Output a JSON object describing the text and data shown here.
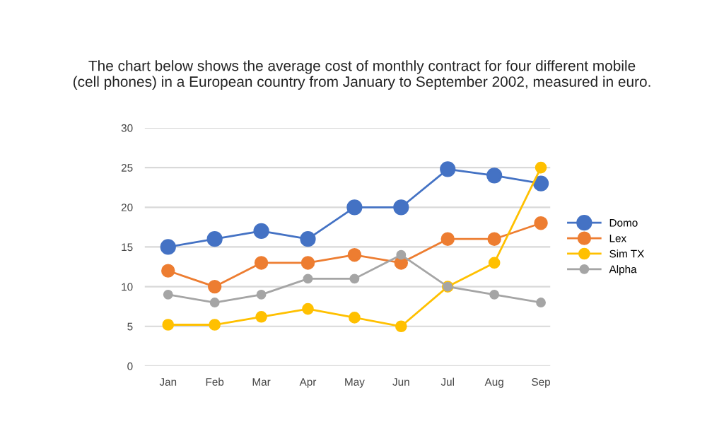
{
  "chart_data": {
    "type": "line",
    "title": "The chart below shows the average cost of monthly contract for four different mobile\n(cell phones) in a European country from January to September 2002, measured in euro.",
    "categories": [
      "Jan",
      "Feb",
      "Mar",
      "Apr",
      "May",
      "Jun",
      "Jul",
      "Aug",
      "Sep"
    ],
    "series": [
      {
        "name": "Domo",
        "color": "#4472c4",
        "values": [
          15,
          16,
          17,
          16,
          20,
          20,
          24.8,
          24,
          23
        ]
      },
      {
        "name": "Lex",
        "color": "#ed7d31",
        "values": [
          12,
          10,
          13,
          13,
          14,
          13,
          16,
          16,
          18
        ]
      },
      {
        "name": "Sim TX",
        "color": "#ffc000",
        "values": [
          5.2,
          5.2,
          6.2,
          7.2,
          6.1,
          5,
          10,
          13,
          25
        ]
      },
      {
        "name": "Alpha",
        "color": "#a5a5a5",
        "values": [
          9,
          8,
          9,
          11,
          11,
          14,
          10,
          9,
          8
        ]
      }
    ],
    "ylim": [
      0,
      30
    ],
    "yticks": [
      0,
      5,
      10,
      15,
      20,
      25,
      30
    ],
    "grid": "y",
    "legend": "right",
    "marker": "circle",
    "line_style": "solid"
  }
}
